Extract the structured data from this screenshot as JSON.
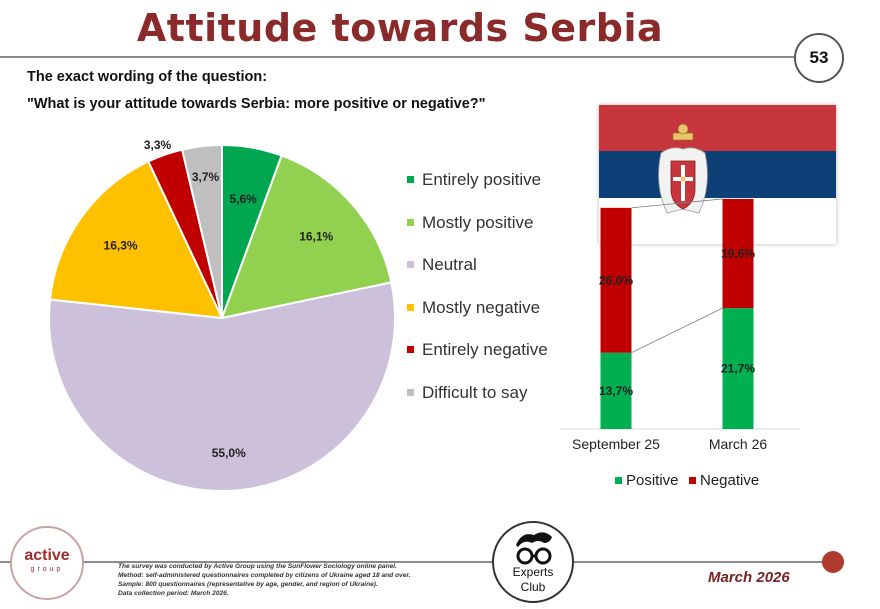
{
  "header": {
    "title": "Attitude towards Serbia",
    "page_number": "53"
  },
  "question": {
    "label": "The exact wording of the question:",
    "text": "\"What is your attitude towards Serbia: more positive or negative?\""
  },
  "chart_data": [
    {
      "type": "pie",
      "labels": [
        "Entirely positive",
        "Mostly positive",
        "Neutral",
        "Mostly negative",
        "Entirely negative",
        "Difficult to say"
      ],
      "values": [
        5.6,
        16.1,
        55.0,
        16.3,
        3.3,
        3.7
      ],
      "value_labels": [
        "5,6%",
        "16,1%",
        "55,0%",
        "16,3%",
        "3,3%",
        "3,7%"
      ],
      "colors": [
        "#00a650",
        "#92d050",
        "#ccc0da",
        "#ffc000",
        "#c00000",
        "#bfbfbf"
      ],
      "start_angle_deg": 0,
      "direction": "clockwise",
      "legend_position": "right"
    },
    {
      "type": "bar",
      "stacked": true,
      "categories": [
        "September 25",
        "March 26"
      ],
      "series": [
        {
          "name": "Positive",
          "values": [
            13.7,
            21.7
          ],
          "labels": [
            "13,7%",
            "21,7%"
          ],
          "color": "#00b050"
        },
        {
          "name": "Negative",
          "values": [
            26.0,
            19.6
          ],
          "labels": [
            "26,0%",
            "19,6%"
          ],
          "color": "#c00000"
        }
      ],
      "series_lines": true,
      "legend_position": "bottom"
    }
  ],
  "footer": {
    "logo_text": "active",
    "logo_subtext": "group",
    "notes": [
      "The survey was conducted by Active Group using the SunFlower Sociology online panel.",
      "Method: self-administered questionnaires completed by citizens of Ukraine aged 18 and over.",
      "Sample: 800 questionnaires (representative by age, gender, and region of Ukraine).",
      "Data collection period: March 2026."
    ],
    "experts_line1": "Experts",
    "experts_line2": "Club",
    "date": "March 2026"
  }
}
